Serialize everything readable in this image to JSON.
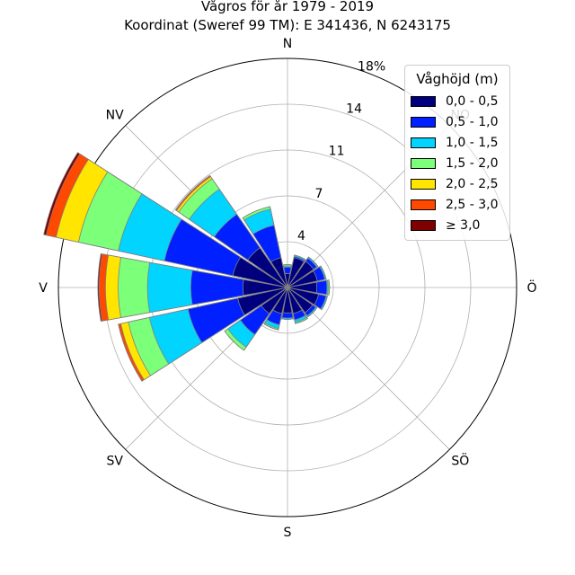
{
  "chart_data": {
    "type": "windrose",
    "title": "Vågros för år 1979 - 2019",
    "subtitle": "Koordinat (Sweref 99 TM): E 341436, N 6243175",
    "directions": [
      "N",
      "NO",
      "Ö",
      "SÖ",
      "S",
      "SV",
      "V",
      "NV"
    ],
    "radial_ticks": [
      "4",
      "7",
      "11",
      "14",
      "18%"
    ],
    "radial_tick_values": [
      3.6,
      7.2,
      10.8,
      14.4,
      18.0
    ],
    "r_max": 18.0,
    "legend_title": "Våghöjd (m)",
    "bins": [
      "0,0 - 0,5",
      "0,5 - 1,0",
      "1,0 - 1,5",
      "1,5 - 2,0",
      "2,0 - 2,5",
      "2,5 - 3,0",
      "≥ 3,0"
    ],
    "colors": [
      "#00007f",
      "#0020ff",
      "#00d4ff",
      "#7cff79",
      "#ffe500",
      "#ff4800",
      "#7f0000"
    ],
    "sector_angles_deg": [
      0,
      22.5,
      45,
      67.5,
      90,
      112.5,
      135,
      157.5,
      180,
      202.5,
      225,
      247.5,
      270,
      292.5,
      315,
      337.5
    ],
    "cumulative": [
      [
        1.1,
        1.6,
        1.7,
        1.8,
        1.8,
        1.8,
        1.8
      ],
      [
        2.4,
        2.5,
        2.6,
        2.6,
        2.6,
        2.6,
        2.6
      ],
      [
        2.5,
        2.8,
        2.9,
        2.9,
        2.9,
        2.9,
        2.9
      ],
      [
        2.4,
        3.0,
        3.1,
        3.1,
        3.1,
        3.1,
        3.1
      ],
      [
        2.3,
        3.1,
        3.2,
        3.3,
        3.3,
        3.3,
        3.3
      ],
      [
        2.5,
        3.1,
        3.2,
        3.2,
        3.2,
        3.2,
        3.2
      ],
      [
        2.4,
        2.7,
        2.8,
        2.8,
        2.8,
        2.8,
        2.8
      ],
      [
        2.1,
        2.6,
        2.8,
        2.9,
        2.9,
        2.9,
        2.9
      ],
      [
        2.0,
        2.4,
        2.5,
        2.5,
        2.5,
        2.5,
        2.5
      ],
      [
        2.1,
        3.0,
        3.3,
        3.4,
        3.4,
        3.4,
        3.4
      ],
      [
        2.5,
        4.5,
        5.7,
        6.0,
        6.0,
        6.0,
        6.0
      ],
      [
        4.0,
        8.0,
        11.1,
        12.8,
        13.4,
        13.6,
        13.6
      ],
      [
        3.5,
        7.6,
        11.0,
        13.3,
        14.3,
        14.8,
        14.9
      ],
      [
        4.4,
        9.9,
        13.6,
        16.8,
        18.6,
        19.4,
        19.6
      ],
      [
        3.8,
        7.0,
        9.4,
        10.4,
        10.6,
        10.7,
        10.7
      ],
      [
        2.4,
        5.0,
        6.3,
        6.5,
        6.5,
        6.5,
        6.5
      ]
    ]
  }
}
